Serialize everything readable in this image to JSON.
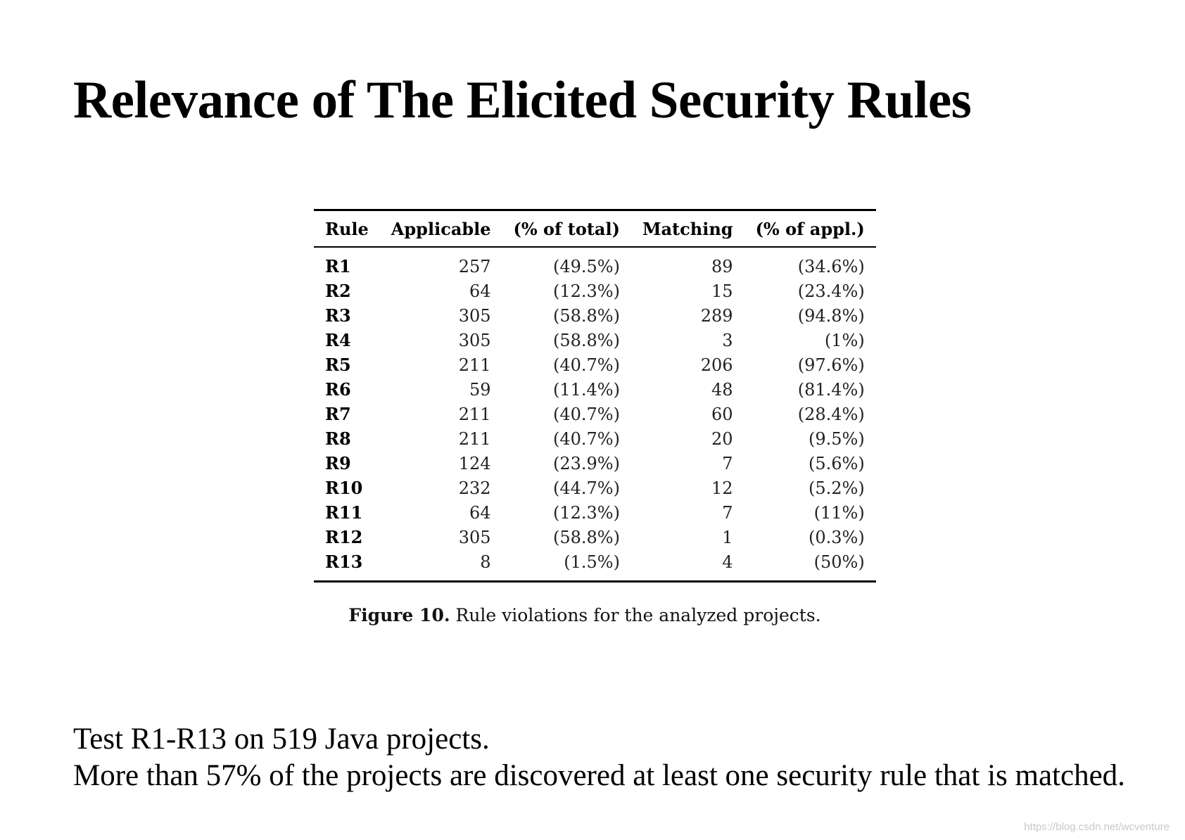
{
  "slide": {
    "title": "Relevance of The Elicited Security Rules"
  },
  "table": {
    "headers": {
      "rule": "Rule",
      "applicable": "Applicable",
      "pct_total": "(% of total)",
      "matching": "Matching",
      "pct_appl": "(% of appl.)"
    },
    "rows": [
      {
        "rule": "R1",
        "applicable": "257",
        "pct_total": "(49.5%)",
        "matching": "89",
        "pct_appl": "(34.6%)"
      },
      {
        "rule": "R2",
        "applicable": "64",
        "pct_total": "(12.3%)",
        "matching": "15",
        "pct_appl": "(23.4%)"
      },
      {
        "rule": "R3",
        "applicable": "305",
        "pct_total": "(58.8%)",
        "matching": "289",
        "pct_appl": "(94.8%)"
      },
      {
        "rule": "R4",
        "applicable": "305",
        "pct_total": "(58.8%)",
        "matching": "3",
        "pct_appl": "(1%)"
      },
      {
        "rule": "R5",
        "applicable": "211",
        "pct_total": "(40.7%)",
        "matching": "206",
        "pct_appl": "(97.6%)"
      },
      {
        "rule": "R6",
        "applicable": "59",
        "pct_total": "(11.4%)",
        "matching": "48",
        "pct_appl": "(81.4%)"
      },
      {
        "rule": "R7",
        "applicable": "211",
        "pct_total": "(40.7%)",
        "matching": "60",
        "pct_appl": "(28.4%)"
      },
      {
        "rule": "R8",
        "applicable": "211",
        "pct_total": "(40.7%)",
        "matching": "20",
        "pct_appl": "(9.5%)"
      },
      {
        "rule": "R9",
        "applicable": "124",
        "pct_total": "(23.9%)",
        "matching": "7",
        "pct_appl": "(5.6%)"
      },
      {
        "rule": "R10",
        "applicable": "232",
        "pct_total": "(44.7%)",
        "matching": "12",
        "pct_appl": "(5.2%)"
      },
      {
        "rule": "R11",
        "applicable": "64",
        "pct_total": "(12.3%)",
        "matching": "7",
        "pct_appl": "(11%)"
      },
      {
        "rule": "R12",
        "applicable": "305",
        "pct_total": "(58.8%)",
        "matching": "1",
        "pct_appl": "(0.3%)"
      },
      {
        "rule": "R13",
        "applicable": "8",
        "pct_total": "(1.5%)",
        "matching": "4",
        "pct_appl": "(50%)"
      }
    ]
  },
  "caption": {
    "label": "Figure 10.",
    "text": " Rule violations for the analyzed projects."
  },
  "body": {
    "line1": "Test R1-R13 on 519 Java projects.",
    "line2": "More than 57% of the projects are discovered at least one security rule that is matched."
  },
  "watermark": "https://blog.csdn.net/wcventure"
}
